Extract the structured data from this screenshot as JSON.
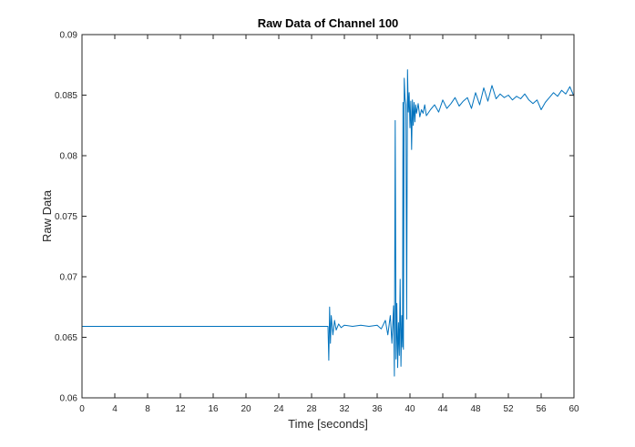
{
  "chart_data": {
    "type": "line",
    "title": "Raw Data of Channel 100",
    "xlabel": "Time [seconds]",
    "ylabel": "Raw Data",
    "xlim": [
      0,
      60
    ],
    "ylim": [
      0.06,
      0.09
    ],
    "xticks": [
      "0",
      "4",
      "8",
      "12",
      "16",
      "20",
      "24",
      "28",
      "32",
      "36",
      "40",
      "44",
      "48",
      "52",
      "56",
      "60"
    ],
    "yticks": [
      "0.06",
      "0.065",
      "0.07",
      "0.075",
      "0.08",
      "0.085",
      "0.09"
    ],
    "grid": false,
    "legend": "none",
    "series": [
      {
        "color": "#0072BD",
        "x": [
          0,
          30.0,
          30.1,
          30.2,
          30.3,
          30.4,
          30.6,
          30.8,
          31.0,
          31.3,
          31.6,
          32.0,
          33.0,
          34.0,
          35.0,
          36.0,
          36.5,
          37.0,
          37.3,
          37.6,
          37.8,
          38.0,
          38.1,
          38.2,
          38.3,
          38.4,
          38.5,
          38.6,
          38.7,
          38.8,
          38.9,
          39.0,
          39.1,
          39.15,
          39.2,
          39.3,
          39.4,
          39.5,
          39.6,
          39.7,
          39.8,
          39.9,
          40.0,
          40.1,
          40.2,
          40.3,
          40.4,
          40.5,
          40.6,
          40.7,
          40.8,
          41.0,
          41.2,
          41.4,
          41.6,
          41.8,
          42.0,
          42.5,
          43.0,
          43.5,
          44.0,
          44.5,
          45.0,
          45.5,
          46.0,
          46.5,
          47.0,
          47.5,
          48.0,
          48.5,
          49.0,
          49.5,
          50.0,
          50.5,
          51.0,
          51.5,
          52.0,
          52.5,
          53.0,
          53.5,
          54.0,
          54.5,
          55.0,
          55.5,
          56.0,
          56.5,
          57.0,
          57.5,
          58.0,
          58.5,
          59.0,
          59.5,
          60.0
        ],
        "y": [
          0.0659,
          0.0659,
          0.0631,
          0.0675,
          0.0645,
          0.0668,
          0.0652,
          0.0664,
          0.0656,
          0.0661,
          0.0658,
          0.066,
          0.0659,
          0.066,
          0.0659,
          0.066,
          0.0657,
          0.0664,
          0.0652,
          0.0668,
          0.0645,
          0.0676,
          0.0618,
          0.0829,
          0.0632,
          0.0678,
          0.0625,
          0.0662,
          0.0635,
          0.0698,
          0.0626,
          0.0668,
          0.0642,
          0.0844,
          0.064,
          0.0864,
          0.0847,
          0.0842,
          0.0665,
          0.0871,
          0.0836,
          0.0852,
          0.0823,
          0.0845,
          0.0805,
          0.0846,
          0.0825,
          0.0844,
          0.0828,
          0.0842,
          0.0835,
          0.0843,
          0.0832,
          0.0838,
          0.0835,
          0.0842,
          0.0833,
          0.0838,
          0.0842,
          0.0836,
          0.0846,
          0.0839,
          0.0843,
          0.0848,
          0.0841,
          0.0845,
          0.0848,
          0.0839,
          0.0852,
          0.0842,
          0.0856,
          0.0845,
          0.0858,
          0.0847,
          0.0851,
          0.0848,
          0.085,
          0.0846,
          0.0849,
          0.0847,
          0.0851,
          0.0846,
          0.0843,
          0.0846,
          0.0838,
          0.0844,
          0.0848,
          0.0852,
          0.0849,
          0.0854,
          0.0851,
          0.0857,
          0.0849
        ]
      }
    ]
  }
}
